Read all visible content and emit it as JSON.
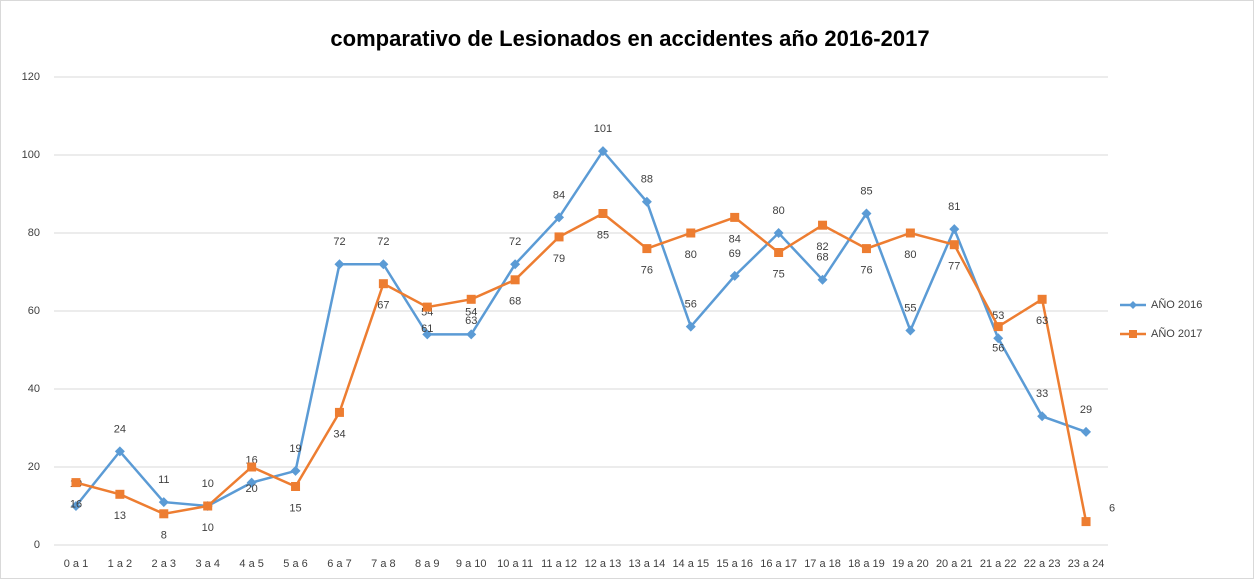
{
  "chart_data": {
    "type": "line",
    "title": "comparativo de Lesionados en accidentes año 2016-2017",
    "categories": [
      "0 a 1",
      "1 a 2",
      "2 a 3",
      "3 a 4",
      "4 a 5",
      "5 a 6",
      "6 a 7",
      "7 a 8",
      "8 a 9",
      "9 a 10",
      "10 a 11",
      "11 a 12",
      "12 a 13",
      "13 a 14",
      "14 a 15",
      "15 a 16",
      "16 a 17",
      "17 a 18",
      "18 a 19",
      "19 a 20",
      "20 a 21",
      "21 a 22",
      "22 a 23",
      "23 a 24"
    ],
    "series": [
      {
        "name": "AÑO 2016",
        "color": "#5b9bd5",
        "marker": "diamond",
        "values": [
          10,
          24,
          11,
          10,
          16,
          19,
          72,
          72,
          54,
          54,
          72,
          84,
          101,
          88,
          56,
          69,
          80,
          68,
          85,
          55,
          81,
          53,
          33,
          29
        ]
      },
      {
        "name": "AÑO 2017",
        "color": "#ed7d31",
        "marker": "square",
        "values": [
          16,
          13,
          8,
          10,
          20,
          15,
          34,
          67,
          61,
          63,
          68,
          79,
          85,
          76,
          80,
          84,
          75,
          82,
          76,
          80,
          77,
          56,
          63,
          6
        ]
      }
    ],
    "ylim": [
      0,
      120
    ],
    "yticks": [
      0,
      20,
      40,
      60,
      80,
      100,
      120
    ],
    "grid": true,
    "legend": "right"
  }
}
